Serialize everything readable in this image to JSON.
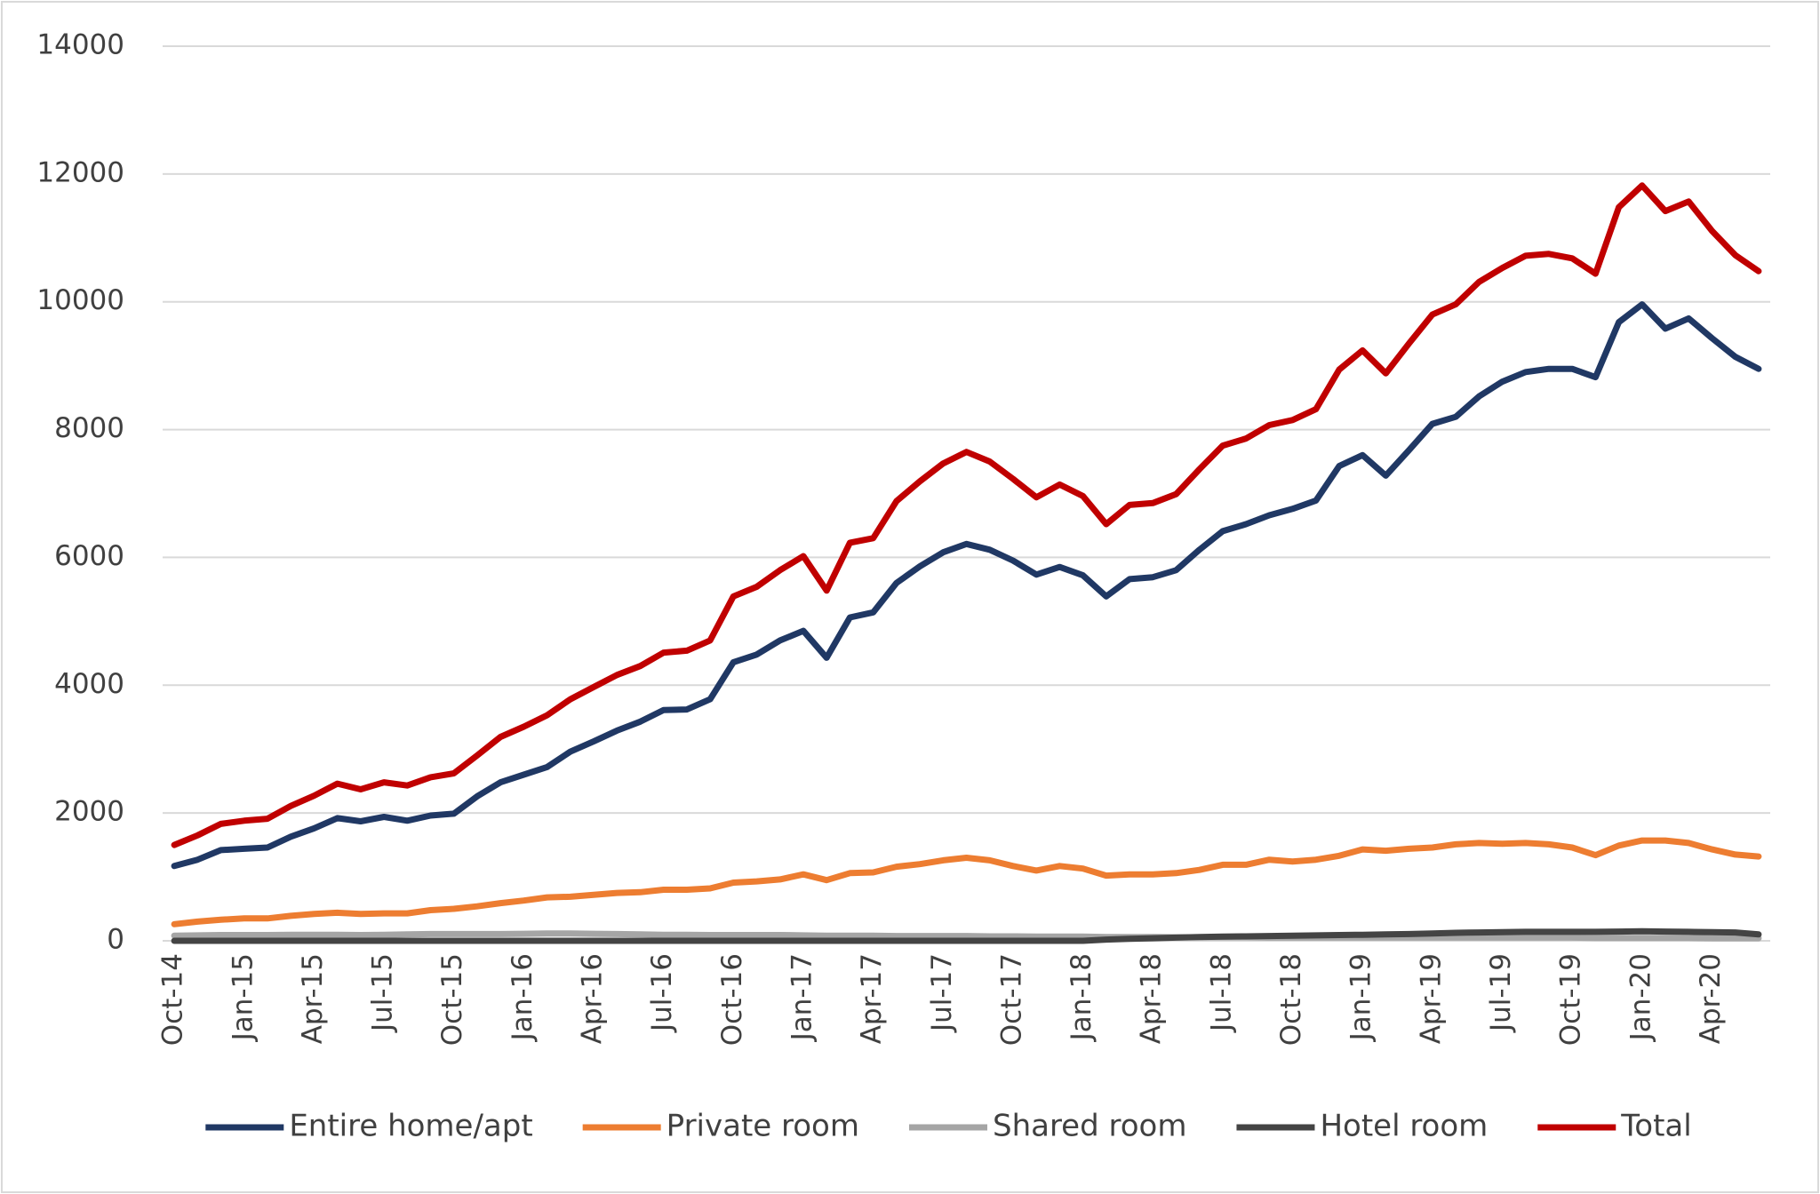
{
  "chart_data": {
    "type": "line",
    "categories": [
      "Oct-14",
      null,
      null,
      "Jan-15",
      null,
      null,
      "Apr-15",
      null,
      null,
      "Jul-15",
      null,
      null,
      "Oct-15",
      null,
      null,
      "Jan-16",
      null,
      null,
      "Apr-16",
      null,
      null,
      "Jul-16",
      null,
      null,
      "Oct-16",
      null,
      null,
      "Jan-17",
      null,
      null,
      "Apr-17",
      null,
      null,
      "Jul-17",
      null,
      null,
      "Oct-17",
      null,
      null,
      "Jan-18",
      null,
      null,
      "Apr-18",
      null,
      null,
      "Jul-18",
      null,
      null,
      "Oct-18",
      null,
      null,
      "Jan-19",
      null,
      null,
      "Apr-19",
      null,
      null,
      "Jul-19",
      null,
      null,
      "Oct-19",
      null,
      null,
      "Jan-20",
      null,
      null,
      "Apr-20",
      null,
      null
    ],
    "series": [
      {
        "name": "Entire home/apt",
        "color": "#203864",
        "values": [
          1170,
          1270,
          1420,
          1440,
          1460,
          1630,
          1760,
          1920,
          1870,
          1940,
          1880,
          1960,
          1990,
          2260,
          2480,
          2600,
          2720,
          2960,
          3120,
          3290,
          3430,
          3610,
          3620,
          3780,
          4360,
          4480,
          4700,
          4850,
          4430,
          5060,
          5140,
          5600,
          5860,
          6080,
          6210,
          6120,
          5950,
          5730,
          5850,
          5720,
          5390,
          5660,
          5690,
          5800,
          6120,
          6410,
          6520,
          6660,
          6760,
          6890,
          7430,
          7600,
          7280,
          7680,
          8090,
          8200,
          8520,
          8750,
          8900,
          8950,
          8950,
          8820,
          9680,
          9960,
          9580,
          9740,
          9430,
          9140,
          8950
        ]
      },
      {
        "name": "Private room",
        "color": "#ED7D31",
        "values": [
          260,
          300,
          330,
          350,
          350,
          390,
          420,
          440,
          420,
          430,
          430,
          480,
          500,
          540,
          590,
          630,
          680,
          690,
          720,
          750,
          760,
          800,
          800,
          820,
          910,
          930,
          960,
          1040,
          950,
          1060,
          1070,
          1160,
          1200,
          1260,
          1300,
          1260,
          1170,
          1100,
          1170,
          1130,
          1020,
          1040,
          1040,
          1060,
          1110,
          1190,
          1190,
          1270,
          1240,
          1270,
          1330,
          1430,
          1410,
          1440,
          1460,
          1510,
          1530,
          1520,
          1530,
          1510,
          1460,
          1340,
          1490,
          1570,
          1570,
          1530,
          1430,
          1350,
          1320
        ]
      },
      {
        "name": "Shared room",
        "color": "#A5A5A5",
        "values": [
          80,
          85,
          90,
          90,
          90,
          95,
          95,
          95,
          90,
          95,
          100,
          105,
          105,
          105,
          105,
          110,
          115,
          115,
          110,
          105,
          100,
          95,
          95,
          90,
          90,
          90,
          90,
          85,
          80,
          80,
          80,
          75,
          75,
          75,
          75,
          70,
          70,
          65,
          65,
          65,
          60,
          60,
          60,
          55,
          55,
          55,
          55,
          50,
          50,
          50,
          50,
          50,
          50,
          50,
          50,
          50,
          50,
          50,
          50,
          50,
          50,
          45,
          45,
          45,
          45,
          45,
          40,
          40,
          40
        ]
      },
      {
        "name": "Hotel room",
        "color": "#444444",
        "values": [
          0,
          0,
          0,
          0,
          0,
          0,
          0,
          0,
          0,
          0,
          0,
          0,
          0,
          0,
          0,
          0,
          0,
          0,
          0,
          0,
          0,
          0,
          0,
          0,
          0,
          0,
          0,
          0,
          0,
          0,
          0,
          0,
          0,
          0,
          0,
          0,
          0,
          0,
          0,
          0,
          20,
          30,
          40,
          50,
          60,
          65,
          70,
          75,
          80,
          85,
          90,
          95,
          100,
          105,
          115,
          125,
          130,
          135,
          140,
          140,
          140,
          140,
          145,
          150,
          145,
          140,
          135,
          130,
          100
        ]
      },
      {
        "name": "Total",
        "color": "#C00000",
        "values": [
          1500,
          1650,
          1830,
          1880,
          1910,
          2110,
          2270,
          2460,
          2370,
          2480,
          2430,
          2560,
          2620,
          2900,
          3190,
          3350,
          3530,
          3780,
          3970,
          4160,
          4300,
          4510,
          4540,
          4700,
          5390,
          5540,
          5800,
          6020,
          5480,
          6230,
          6300,
          6880,
          7190,
          7470,
          7650,
          7500,
          7230,
          6940,
          7140,
          6960,
          6520,
          6820,
          6850,
          6990,
          7380,
          7750,
          7860,
          8070,
          8150,
          8320,
          8940,
          9240,
          8880,
          9350,
          9800,
          9960,
          10310,
          10530,
          10720,
          10750,
          10680,
          10440,
          11480,
          11820,
          11420,
          11570,
          11110,
          10730,
          10480
        ]
      }
    ],
    "ylim": [
      0,
      14000
    ],
    "yticks": [
      0,
      2000,
      4000,
      6000,
      8000,
      10000,
      12000,
      14000
    ],
    "grid": true,
    "legend": "bottom"
  }
}
